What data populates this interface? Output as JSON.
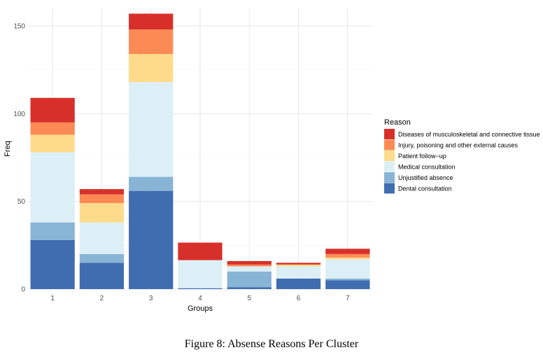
{
  "caption": "Figure 8: Absense Reasons Per Cluster",
  "chart_data": {
    "type": "bar",
    "stacked": true,
    "title": "",
    "xlabel": "Groups",
    "ylabel": "Freq",
    "categories": [
      "1",
      "2",
      "3",
      "4",
      "5",
      "6",
      "7"
    ],
    "ylim": [
      0,
      160
    ],
    "yticks": [
      0,
      50,
      100,
      150
    ],
    "grid": true,
    "legend_title": "Reason",
    "legend_position": "right",
    "series": [
      {
        "name": "Dental consultation",
        "color": "#3f6db0",
        "values": [
          28,
          15,
          56,
          0.5,
          1,
          6,
          5
        ]
      },
      {
        "name": "Unjustified absence",
        "color": "#88b4d6",
        "values": [
          10,
          5,
          8,
          0,
          9,
          0,
          1
        ]
      },
      {
        "name": "Medical consultation",
        "color": "#ddeff6",
        "values": [
          40,
          18,
          54,
          16,
          3,
          7,
          11
        ]
      },
      {
        "name": "Patient follow−up",
        "color": "#fedb8b",
        "values": [
          10,
          11,
          16,
          0,
          0,
          1,
          1
        ]
      },
      {
        "name": "Injury, poisoning and other external causes",
        "color": "#fc8a55",
        "values": [
          7,
          5,
          14,
          0,
          1,
          0,
          2
        ]
      },
      {
        "name": "Diseases of musculoskeletal and connective tissue",
        "color": "#d7302a",
        "values": [
          14,
          3,
          9,
          10,
          2,
          1,
          3
        ]
      }
    ],
    "legend_order": [
      5,
      4,
      3,
      2,
      1,
      0
    ]
  }
}
